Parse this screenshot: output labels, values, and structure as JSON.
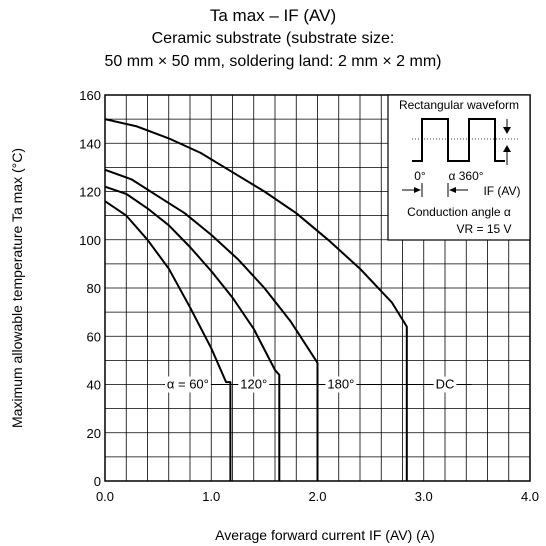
{
  "titles": {
    "line1": "Ta max – IF (AV)",
    "line2": "Ceramic substrate (substrate size:",
    "line3": "50 mm × 50 mm, soldering land: 2 mm × 2 mm)"
  },
  "chart_data": {
    "type": "line",
    "title": "Ta max – IF (AV)",
    "subtitle": "Ceramic substrate (substrate size: 50 mm × 50 mm, soldering land: 2 mm × 2 mm)",
    "xlabel": "Average forward current IF (AV) (A)",
    "ylabel": "Maximum allowable temperature Ta max (°C)",
    "xlim": [
      0,
      4
    ],
    "ylim": [
      0,
      160
    ],
    "xticks": [
      "0.0",
      "1.0",
      "2.0",
      "3.0",
      "4.0"
    ],
    "yticks": [
      "0",
      "20",
      "40",
      "60",
      "80",
      "100",
      "120",
      "140",
      "160"
    ],
    "grid": true,
    "series": [
      {
        "name": "α = 60°",
        "x": [
          0,
          0.2,
          0.4,
          0.6,
          0.8,
          1.0,
          1.14,
          1.18,
          1.18
        ],
        "y": [
          116,
          110,
          100,
          88,
          72,
          55,
          41,
          41,
          0
        ]
      },
      {
        "name": "120°",
        "x": [
          0,
          0.2,
          0.4,
          0.6,
          0.8,
          1.0,
          1.2,
          1.4,
          1.6,
          1.64,
          1.64
        ],
        "y": [
          122,
          119,
          113,
          106,
          97,
          87,
          76,
          63,
          46,
          44,
          0
        ]
      },
      {
        "name": "180°",
        "x": [
          0,
          0.25,
          0.5,
          0.75,
          1.0,
          1.25,
          1.5,
          1.75,
          2.0,
          2.0
        ],
        "y": [
          129,
          125,
          118,
          111,
          102,
          92,
          80,
          66,
          49,
          0
        ]
      },
      {
        "name": "DC",
        "x": [
          0,
          0.3,
          0.6,
          0.9,
          1.2,
          1.5,
          1.8,
          2.1,
          2.4,
          2.7,
          2.84,
          2.84
        ],
        "y": [
          150,
          147,
          142,
          136,
          128,
          120,
          111,
          100,
          88,
          74,
          64,
          0
        ]
      }
    ],
    "annotations": {
      "inset_title": "Rectangular waveform",
      "deg_zero": "0°",
      "deg_alpha": "α 360°",
      "if_label": "IF (AV)",
      "conduction": "Conduction angle α",
      "vr": "VR = 15 V"
    }
  }
}
